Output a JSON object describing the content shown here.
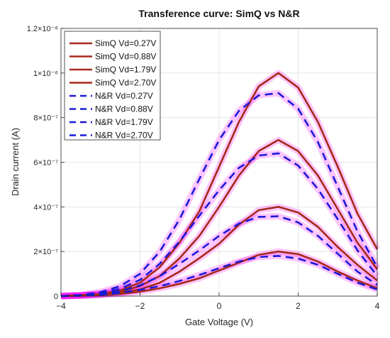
{
  "chart_data": {
    "type": "line",
    "title": "Transference curve: SimQ vs N&R",
    "xlabel": "Gate Voltage (V)",
    "ylabel": "Drain current (A)",
    "xlim": [
      -4,
      4
    ],
    "ylim": [
      0,
      1.2e-06
    ],
    "grid": true,
    "legend_position": "top-left",
    "x_ticks": [
      {
        "value": -4,
        "label": "−4"
      },
      {
        "value": -2,
        "label": "−2"
      },
      {
        "value": 0,
        "label": "0"
      },
      {
        "value": 2,
        "label": "2"
      },
      {
        "value": 4,
        "label": "4"
      }
    ],
    "y_ticks": [
      {
        "value": 0,
        "label": "0"
      },
      {
        "value": 2e-07,
        "label": "2×10⁻⁷"
      },
      {
        "value": 4e-07,
        "label": "4×10⁻⁷"
      },
      {
        "value": 6e-07,
        "label": "6×10⁻⁷"
      },
      {
        "value": 8e-07,
        "label": "8×10⁻⁷"
      },
      {
        "value": 1e-06,
        "label": "1×10⁻⁶"
      },
      {
        "value": 1.2e-06,
        "label": "1.2×10⁻⁶"
      }
    ],
    "x": [
      -4,
      -3.5,
      -3,
      -2.5,
      -2,
      -1.5,
      -1,
      -0.5,
      0,
      0.5,
      1,
      1.5,
      2,
      2.5,
      3,
      3.5,
      4
    ],
    "series": [
      {
        "name": "SimQ Vd=0.27V",
        "style": "solid",
        "color": "#a52a1a",
        "values": [
          0,
          2e-09,
          5e-09,
          1e-08,
          2e-08,
          3.5e-08,
          5.5e-08,
          8e-08,
          1.15e-07,
          1.5e-07,
          1.85e-07,
          2e-07,
          1.88e-07,
          1.55e-07,
          1.1e-07,
          7e-08,
          3.5e-08
        ]
      },
      {
        "name": "SimQ Vd=0.88V",
        "style": "solid",
        "color": "#a52a1a",
        "values": [
          0,
          3e-09,
          7e-09,
          1.5e-08,
          3e-08,
          6e-08,
          1.1e-07,
          1.7e-07,
          2.35e-07,
          3.2e-07,
          3.85e-07,
          4e-07,
          3.75e-07,
          3.1e-07,
          2.2e-07,
          1.4e-07,
          7e-08
        ]
      },
      {
        "name": "SimQ Vd=1.79V",
        "style": "solid",
        "color": "#a52a1a",
        "values": [
          0,
          3e-09,
          8e-09,
          2e-08,
          4.5e-08,
          9e-08,
          1.7e-07,
          2.7e-07,
          4e-07,
          5.4e-07,
          6.5e-07,
          7e-07,
          6.5e-07,
          5.4e-07,
          3.9e-07,
          2.4e-07,
          1.2e-07
        ]
      },
      {
        "name": "SimQ Vd=2.70V",
        "style": "solid",
        "color": "#a52a1a",
        "values": [
          0,
          4e-09,
          1e-08,
          2.5e-08,
          6e-08,
          1.3e-07,
          2.4e-07,
          3.8e-07,
          5.8e-07,
          7.8e-07,
          9.4e-07,
          1e-06,
          9.35e-07,
          7.8e-07,
          5.8e-07,
          3.7e-07,
          2.1e-07
        ]
      },
      {
        "name": "N&R Vd=0.27V",
        "style": "dashed",
        "color": "#1a1ad8",
        "values": [
          0,
          2e-09,
          6e-09,
          1.4e-08,
          2.8e-08,
          4.5e-08,
          6.8e-08,
          9.5e-08,
          1.25e-07,
          1.55e-07,
          1.75e-07,
          1.8e-07,
          1.68e-07,
          1.4e-07,
          1e-07,
          6e-08,
          3e-08
        ]
      },
      {
        "name": "N&R Vd=0.88V",
        "style": "dashed",
        "color": "#1a1ad8",
        "values": [
          0,
          3e-09,
          9e-09,
          2.2e-08,
          4.8e-08,
          9e-08,
          1.45e-07,
          2.05e-07,
          2.7e-07,
          3.25e-07,
          3.55e-07,
          3.58e-07,
          3.3e-07,
          2.7e-07,
          1.9e-07,
          1.1e-07,
          5e-08
        ]
      },
      {
        "name": "N&R Vd=1.79V",
        "style": "dashed",
        "color": "#1a1ad8",
        "values": [
          0,
          4e-09,
          1.3e-08,
          3.3e-08,
          7.3e-08,
          1.45e-07,
          2.45e-07,
          3.6e-07,
          4.75e-07,
          5.75e-07,
          6.3e-07,
          6.4e-07,
          5.85e-07,
          4.8e-07,
          3.45e-07,
          2.05e-07,
          9e-08
        ]
      },
      {
        "name": "N&R Vd=2.70V",
        "style": "dashed",
        "color": "#1a1ad8",
        "values": [
          0,
          5e-09,
          1.8e-08,
          4.5e-08,
          1e-07,
          2e-07,
          3.45e-07,
          5.25e-07,
          7e-07,
          8.3e-07,
          9e-07,
          9.1e-07,
          8.4e-07,
          6.9e-07,
          4.9e-07,
          2.9e-07,
          1.3e-07
        ]
      }
    ],
    "colors": {
      "simq": "#a52a1a",
      "nr": "#1a1ad8",
      "halo": "#ff00ff",
      "grid": "#e0e0e0"
    }
  }
}
